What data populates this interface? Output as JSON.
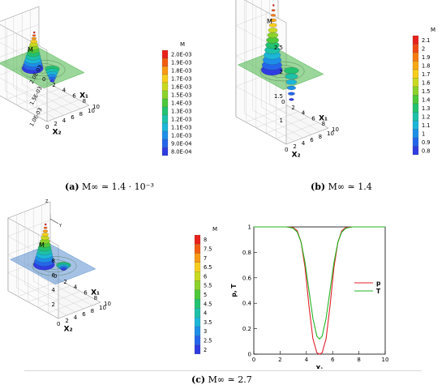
{
  "captions": {
    "a": {
      "label": "(a)",
      "text": "M∞ ≃ 1.4 · 10⁻³"
    },
    "b": {
      "label": "(b)",
      "text": "M∞ ≃ 1.4"
    },
    "c": {
      "label": "(c)",
      "text": "M∞ ≃ 2.7"
    }
  },
  "axis_triad": {
    "z": "Z",
    "x": "X",
    "y": "Y"
  },
  "chart_data": [
    {
      "id": "a",
      "type": "surface3d",
      "zlabel": "M",
      "xlabel_left": "X₂",
      "xlabel_right": "X₁",
      "x_ticks": [
        "0",
        "2",
        "4",
        "6",
        "8",
        "10"
      ],
      "y_ticks": [
        "0",
        "2",
        "4",
        "6",
        "8",
        "10"
      ],
      "z_ticks": [
        "1.0E-03",
        "1.5E-03",
        "2.0E-03"
      ],
      "legend_title": "M",
      "legend_levels": [
        "2.0E-03",
        "1.9E-03",
        "1.8E-03",
        "1.7E-03",
        "1.6E-03",
        "1.5E-03",
        "1.4E-03",
        "1.3E-03",
        "1.2E-03",
        "1.1E-03",
        "1.0E-03",
        "9.0E-04",
        "8.0E-04"
      ],
      "legend_colors": [
        "#e8211b",
        "#f25d12",
        "#f89a14",
        "#f6cd1c",
        "#c9d91f",
        "#8cd22a",
        "#4cc83a",
        "#22c270",
        "#1cc1a8",
        "#1bb6d8",
        "#1d8fe8",
        "#2466ea",
        "#2f3ce0"
      ],
      "plane_color": "#49b449",
      "z_range": [
        0.0008,
        0.002
      ]
    },
    {
      "id": "b",
      "type": "surface3d",
      "zlabel": "M",
      "xlabel_left": "X₂",
      "xlabel_right": "X₁",
      "x_ticks": [
        "0",
        "2",
        "4",
        "6",
        "8",
        "10"
      ],
      "y_ticks": [
        "0",
        "2",
        "4",
        "6",
        "8",
        "10"
      ],
      "z_ticks": [
        "1",
        "1.5",
        "2",
        "2.5"
      ],
      "legend_title": "M",
      "legend_levels": [
        "2.1",
        "2",
        "1.9",
        "1.8",
        "1.7",
        "1.6",
        "1.5",
        "1.4",
        "1.3",
        "1.2",
        "1.1",
        "1",
        "0.9",
        "0.8"
      ],
      "legend_colors": [
        "#e8211b",
        "#f04a14",
        "#f67c12",
        "#f9a815",
        "#f6cd1c",
        "#c9d91f",
        "#8cd22a",
        "#4cc83a",
        "#22c270",
        "#1cc1a8",
        "#1bb6d8",
        "#1d8fe8",
        "#2466ea",
        "#2f3ce0"
      ],
      "plane_color": "#49b449",
      "z_range": [
        0.8,
        2.1
      ]
    },
    {
      "id": "c",
      "type": "surface3d",
      "zlabel": "M",
      "xlabel_left": "X₂",
      "xlabel_right": "X₁",
      "x_ticks": [
        "0",
        "2",
        "4",
        "6",
        "8",
        "10"
      ],
      "y_ticks": [
        "0",
        "2",
        "4",
        "6",
        "8",
        "10"
      ],
      "z_ticks": [
        "2",
        "4",
        "6",
        "8"
      ],
      "legend_title": "M",
      "legend_levels": [
        "8",
        "7.5",
        "7",
        "6.5",
        "6",
        "5.5",
        "5",
        "4.5",
        "4",
        "3.5",
        "3",
        "2.5",
        "2"
      ],
      "legend_colors": [
        "#e8211b",
        "#f25d12",
        "#f89a14",
        "#f6cd1c",
        "#c9d91f",
        "#8cd22a",
        "#4cc83a",
        "#22c270",
        "#1cc1a8",
        "#1bb6d8",
        "#1d8fe8",
        "#2466ea",
        "#2f3ce0"
      ],
      "plane_color": "#5b8fcf",
      "z_range": [
        2,
        8
      ]
    },
    {
      "id": "d",
      "type": "line",
      "xlabel": "X₁",
      "ylabel": "p, T",
      "xlim": [
        0,
        10
      ],
      "ylim": [
        0,
        1
      ],
      "x_ticks": [
        0,
        2,
        4,
        6,
        8,
        10
      ],
      "y_ticks": [
        0,
        0.2,
        0.4,
        0.6,
        0.8,
        1
      ],
      "legend_position": "right",
      "series": [
        {
          "name": "p",
          "color": "#e0202a",
          "x": [
            0,
            2.5,
            3.0,
            3.3,
            3.6,
            3.9,
            4.2,
            4.5,
            4.8,
            5.0,
            5.2,
            5.5,
            5.8,
            6.1,
            6.4,
            6.7,
            7.0,
            7.5,
            10
          ],
          "y": [
            1,
            1,
            0.995,
            0.97,
            0.88,
            0.68,
            0.38,
            0.12,
            0.01,
            0,
            0.01,
            0.12,
            0.38,
            0.68,
            0.88,
            0.97,
            0.995,
            1,
            1
          ]
        },
        {
          "name": "T",
          "color": "#22b522",
          "x": [
            0,
            2.5,
            3.0,
            3.3,
            3.6,
            3.9,
            4.2,
            4.5,
            4.8,
            5.0,
            5.2,
            5.5,
            5.8,
            6.1,
            6.4,
            6.7,
            7.0,
            7.5,
            10
          ],
          "y": [
            1,
            1,
            0.99,
            0.96,
            0.88,
            0.72,
            0.5,
            0.28,
            0.14,
            0.12,
            0.14,
            0.28,
            0.5,
            0.72,
            0.88,
            0.96,
            0.99,
            1,
            1
          ]
        }
      ]
    }
  ]
}
